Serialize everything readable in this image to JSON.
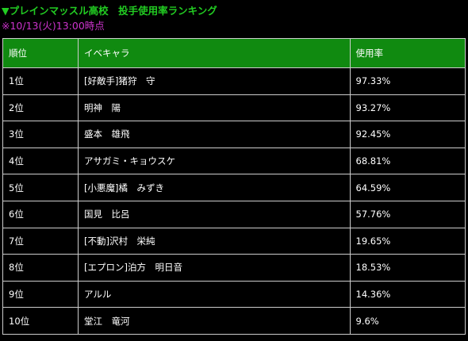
{
  "header": {
    "title": "▼プレインマッスル高校　投手使用率ランキング",
    "timestamp": "※10/13(火)13:00時点"
  },
  "colors": {
    "title": "#22cc22",
    "timestamp": "#cc33cc",
    "header_bg": "#108a10",
    "border": "#cccccc"
  },
  "table": {
    "columns": [
      "順位",
      "イベキャラ",
      "使用率"
    ],
    "rows": [
      {
        "rank": "1位",
        "character": "[好敵手]猪狩　守",
        "rate": "97.33%"
      },
      {
        "rank": "2位",
        "character": "明神　陽",
        "rate": "93.27%"
      },
      {
        "rank": "3位",
        "character": "盛本　雄飛",
        "rate": "92.45%"
      },
      {
        "rank": "4位",
        "character": "アサガミ・キョウスケ",
        "rate": "68.81%"
      },
      {
        "rank": "5位",
        "character": "[小悪魔]橘　みずき",
        "rate": "64.59%"
      },
      {
        "rank": "6位",
        "character": "国見　比呂",
        "rate": "57.76%"
      },
      {
        "rank": "7位",
        "character": "[不動]沢村　栄純",
        "rate": "19.65%"
      },
      {
        "rank": "8位",
        "character": "[エプロン]泊方　明日音",
        "rate": "18.53%"
      },
      {
        "rank": "9位",
        "character": "アルル",
        "rate": "14.36%"
      },
      {
        "rank": "10位",
        "character": "堂江　竜河",
        "rate": "9.6%"
      }
    ]
  }
}
